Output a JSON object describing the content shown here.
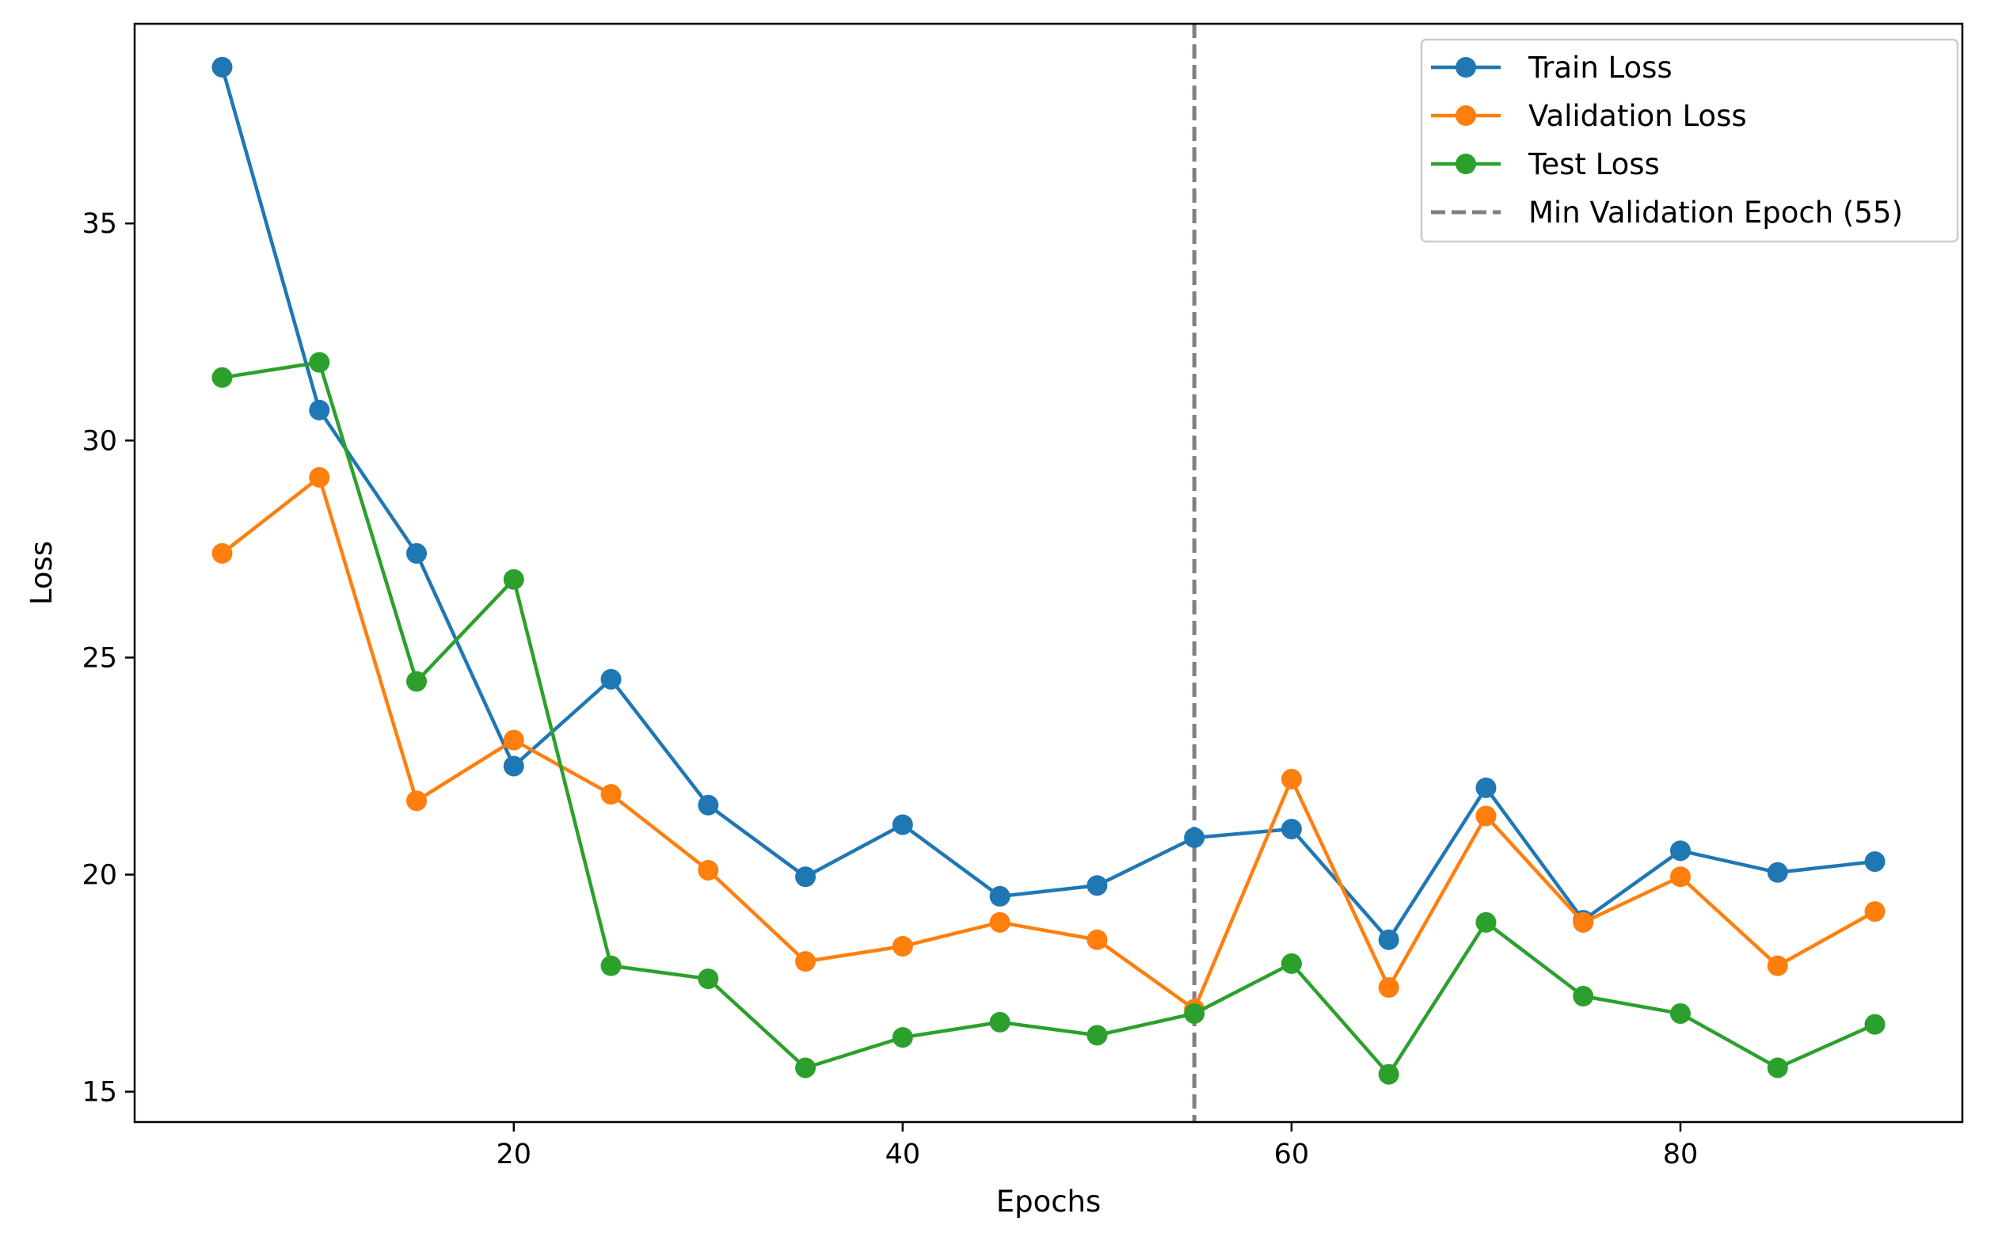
{
  "chart_data": {
    "type": "line",
    "title": "",
    "xlabel": "Epochs",
    "ylabel": "Loss",
    "xlim": [
      0.5,
      94.5
    ],
    "ylim": [
      14.3,
      39.6
    ],
    "xticks": [
      20,
      40,
      60,
      80
    ],
    "yticks": [
      15,
      20,
      25,
      30,
      35
    ],
    "x": [
      5,
      10,
      15,
      20,
      25,
      30,
      35,
      40,
      45,
      50,
      55,
      60,
      65,
      70,
      75,
      80,
      85,
      90
    ],
    "series": [
      {
        "name": "Train Loss",
        "color": "#1f77b4",
        "marker": "circle",
        "values": [
          38.6,
          30.7,
          27.4,
          22.5,
          24.5,
          21.6,
          19.95,
          21.15,
          19.5,
          19.75,
          20.85,
          21.05,
          18.5,
          22.0,
          18.95,
          20.55,
          20.05,
          20.3
        ]
      },
      {
        "name": "Validation Loss",
        "color": "#ff7f0e",
        "marker": "circle",
        "values": [
          27.4,
          29.15,
          21.7,
          23.1,
          21.85,
          20.1,
          18.0,
          18.35,
          18.9,
          18.5,
          16.9,
          22.2,
          17.4,
          21.35,
          18.9,
          19.95,
          17.9,
          19.15
        ]
      },
      {
        "name": "Test Loss",
        "color": "#2ca02c",
        "marker": "circle",
        "values": [
          31.45,
          31.8,
          24.45,
          26.8,
          17.9,
          17.6,
          15.55,
          16.25,
          16.6,
          16.3,
          16.8,
          17.95,
          15.4,
          18.9,
          17.2,
          16.8,
          15.55,
          16.55
        ]
      }
    ],
    "vline": {
      "name": "Min Validation Epoch (55)",
      "x": 55,
      "color": "#7f7f7f",
      "style": "dashed"
    },
    "legend_position": "top-right",
    "grid": false
  }
}
